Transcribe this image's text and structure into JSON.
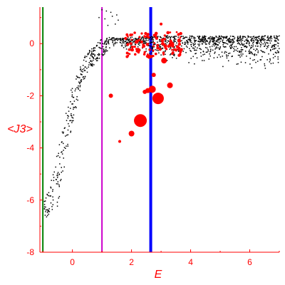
{
  "chart_data": {
    "type": "scatter",
    "xlabel": "E",
    "ylabel": "<J3>",
    "xlim": [
      -1.1,
      7.0
    ],
    "ylim": [
      -8.0,
      1.4
    ],
    "x_ticks": [
      0,
      2,
      4,
      6
    ],
    "y_ticks": [
      0,
      -2,
      -4,
      -6,
      -8
    ],
    "grid": false,
    "colors": {
      "axis": "#ff0000",
      "points": "#000000",
      "highlight": "#ff0000",
      "line_green": "#008000",
      "line_magenta": "#cc00cc",
      "line_blue": "#0000ff"
    },
    "vertical_lines": [
      {
        "x": -1.0,
        "color": "#008000"
      },
      {
        "x": 1.0,
        "color": "#cc00cc"
      },
      {
        "x": 2.65,
        "color": "#0000ff"
      }
    ],
    "band": {
      "description_points": "black dots, thousands of states",
      "upper": [
        [
          -0.95,
          -6.0
        ],
        [
          -0.8,
          -5.6
        ],
        [
          -0.6,
          -4.6
        ],
        [
          -0.4,
          -3.4
        ],
        [
          -0.2,
          -2.4
        ],
        [
          0.0,
          -1.6
        ],
        [
          0.2,
          -1.0
        ],
        [
          0.4,
          -0.5
        ],
        [
          0.6,
          -0.2
        ],
        [
          0.8,
          0.0
        ],
        [
          1.0,
          0.2
        ],
        [
          1.3,
          0.25
        ],
        [
          1.6,
          0.2
        ],
        [
          2.0,
          0.25
        ],
        [
          3.0,
          0.3
        ],
        [
          4.0,
          0.3
        ],
        [
          5.0,
          0.3
        ],
        [
          6.0,
          0.3
        ],
        [
          7.0,
          0.3
        ]
      ],
      "lower": [
        [
          -0.95,
          -6.7
        ],
        [
          -0.8,
          -6.6
        ],
        [
          -0.5,
          -6.5
        ],
        [
          -0.3,
          -5.0
        ],
        [
          -0.1,
          -3.6
        ],
        [
          0.1,
          -2.6
        ],
        [
          0.3,
          -1.6
        ],
        [
          0.6,
          -1.0
        ],
        [
          0.9,
          -0.6
        ],
        [
          1.2,
          -0.3
        ],
        [
          1.6,
          -0.2
        ],
        [
          2.0,
          -0.35
        ],
        [
          3.0,
          -0.7
        ],
        [
          4.0,
          -0.9
        ],
        [
          5.0,
          -1.0
        ],
        [
          6.0,
          -1.1
        ],
        [
          7.0,
          -1.2
        ]
      ]
    },
    "upper_outliers": [
      [
        1.0,
        1.3
      ],
      [
        1.15,
        1.25
      ],
      [
        1.3,
        1.2
      ],
      [
        1.5,
        1.1
      ],
      [
        0.9,
        1.0
      ],
      [
        1.1,
        0.95
      ],
      [
        1.35,
        1.05
      ],
      [
        1.55,
        0.9
      ],
      [
        1.2,
        0.7
      ],
      [
        1.45,
        0.75
      ]
    ],
    "highlighted_points": [
      {
        "x": 2.3,
        "y": -2.95,
        "size": 9
      },
      {
        "x": 2.9,
        "y": -2.1,
        "size": 8
      },
      {
        "x": 2.7,
        "y": -1.75,
        "size": 5
      },
      {
        "x": 3.3,
        "y": -1.6,
        "size": 4
      },
      {
        "x": 2.55,
        "y": -1.8,
        "size": 3.5
      },
      {
        "x": 2.0,
        "y": -3.45,
        "size": 4
      },
      {
        "x": 2.45,
        "y": -1.85,
        "size": 3
      },
      {
        "x": 1.3,
        "y": -2.0,
        "size": 3
      },
      {
        "x": 2.75,
        "y": -1.2,
        "size": 3
      },
      {
        "x": 3.1,
        "y": -0.65,
        "size": 4
      },
      {
        "x": 2.6,
        "y": -0.5,
        "size": 3
      },
      {
        "x": 1.6,
        "y": -3.75,
        "size": 2
      },
      {
        "x": 2.25,
        "y": -0.25,
        "size": 2.5
      },
      {
        "x": 1.85,
        "y": -0.5,
        "size": 2
      },
      {
        "x": 2.4,
        "y": -0.05,
        "size": 2
      },
      {
        "x": 3.4,
        "y": -0.35,
        "size": 2
      },
      {
        "x": 2.15,
        "y": 0.05,
        "size": 2
      },
      {
        "x": 3.6,
        "y": 0.1,
        "size": 2
      },
      {
        "x": 2.85,
        "y": 0.2,
        "size": 2
      },
      {
        "x": 3.0,
        "y": 0.75,
        "size": 2
      }
    ],
    "cluster": {
      "x_range": [
        1.8,
        3.7
      ],
      "y_range": [
        -0.5,
        0.45
      ],
      "count": 110
    }
  }
}
